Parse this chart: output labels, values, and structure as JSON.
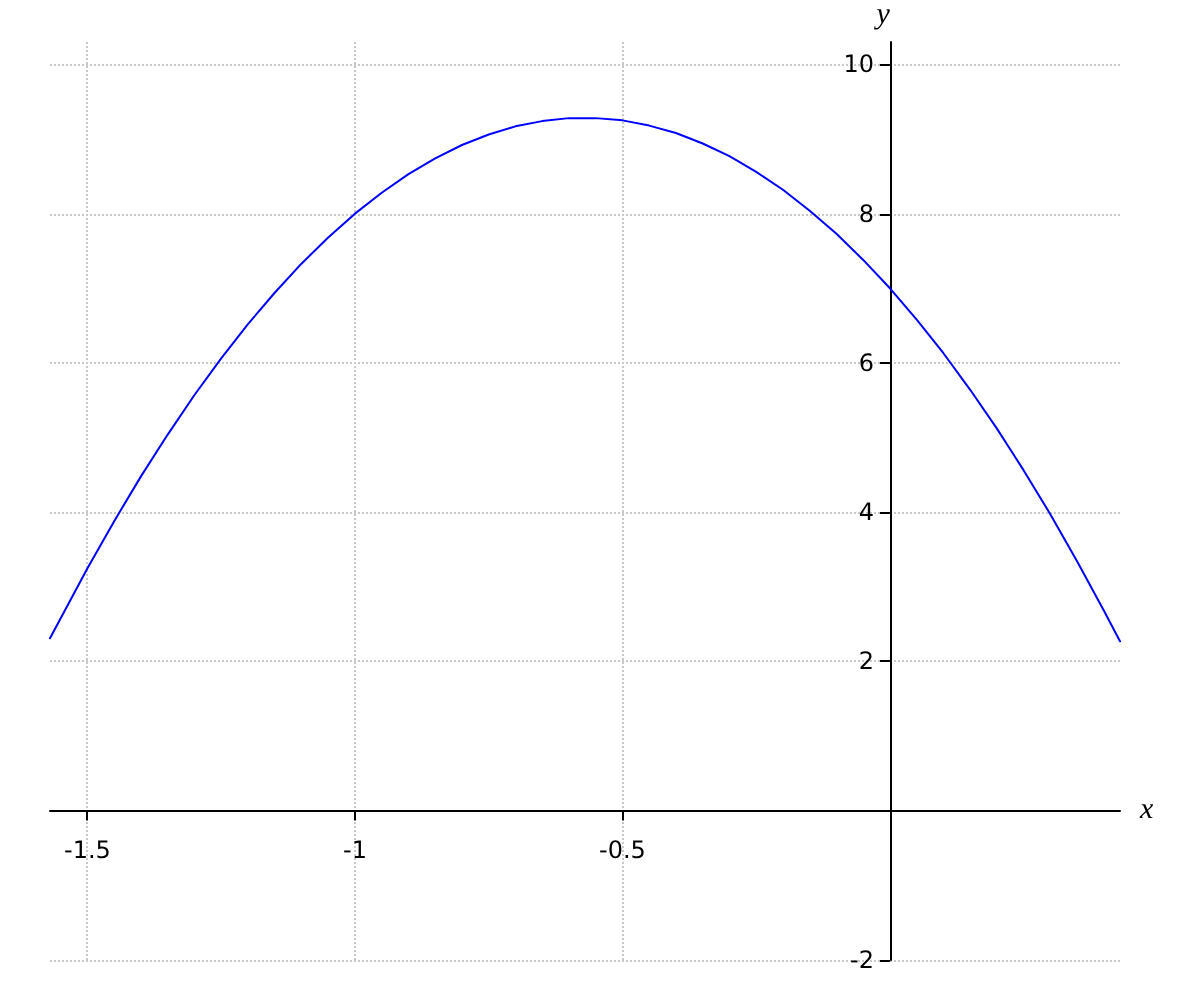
{
  "chart_data": {
    "type": "line",
    "xlabel": "x",
    "ylabel": "y",
    "xlim": [
      -1.57,
      0.43
    ],
    "ylim": [
      -2,
      10.3
    ],
    "xticks": [
      -1.5,
      -1,
      -0.5
    ],
    "yticks": [
      -2,
      2,
      4,
      6,
      8,
      10
    ],
    "grid": true,
    "marker": "none",
    "line_style": "solid",
    "series": [
      {
        "color": "#0000ff",
        "x": [
          -1.57,
          -1.5,
          -1.45,
          -1.4,
          -1.35,
          -1.3,
          -1.25,
          -1.2,
          -1.15,
          -1.1,
          -1.05,
          -1,
          -0.95,
          -0.9,
          -0.85,
          -0.8,
          -0.75,
          -0.7,
          -0.65,
          -0.6,
          -0.55,
          -0.5,
          -0.45,
          -0.4,
          -0.35,
          -0.3,
          -0.25,
          -0.2,
          -0.15,
          -0.1,
          -0.05,
          0,
          0.05,
          0.1,
          0.15,
          0.2,
          0.25,
          0.3,
          0.35,
          0.4,
          0.43
        ],
        "values": [
          2.31,
          3.25,
          3.88,
          4.48,
          5.04,
          5.57,
          6.06,
          6.52,
          6.94,
          7.33,
          7.68,
          8,
          8.28,
          8.53,
          8.74,
          8.92,
          9.06,
          9.17,
          9.24,
          9.28,
          9.28,
          9.25,
          9.18,
          9.08,
          8.94,
          8.77,
          8.56,
          8.32,
          8.04,
          7.73,
          7.38,
          7,
          6.58,
          6.13,
          5.64,
          5.12,
          4.56,
          3.97,
          3.34,
          2.68,
          2.27
        ]
      }
    ]
  }
}
